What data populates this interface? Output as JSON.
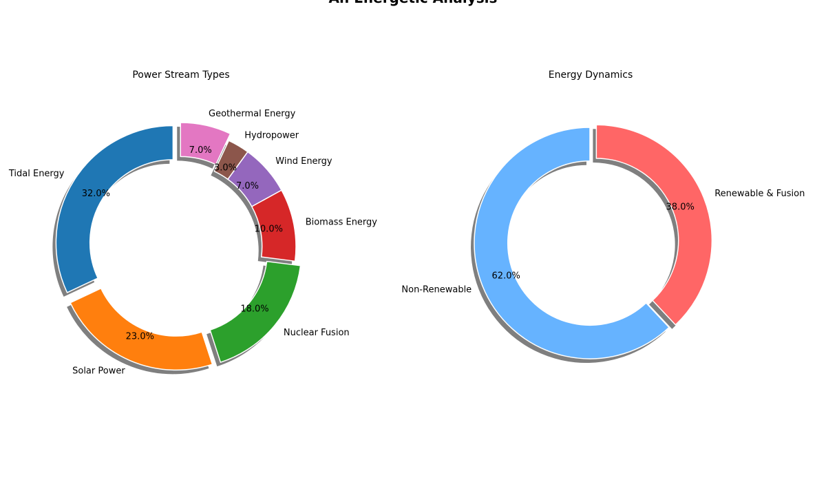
{
  "figure_title": "An Energetic Analysis",
  "chart_data": [
    {
      "type": "pie",
      "style": "donut",
      "title": "Power Stream Types",
      "start_angle_deg": 90,
      "direction": "counterclockwise",
      "shadow": true,
      "slices": [
        {
          "label": "Tidal Energy",
          "value": 32,
          "pct_label": "32.0%",
          "color": "#1f77b4",
          "exploded": true
        },
        {
          "label": "Solar Power",
          "value": 23,
          "pct_label": "23.0%",
          "color": "#ff7f0e",
          "exploded": true
        },
        {
          "label": "Nuclear Fusion",
          "value": 18,
          "pct_label": "18.0%",
          "color": "#2ca02c",
          "exploded": true
        },
        {
          "label": "Biomass Energy",
          "value": 10,
          "pct_label": "10.0%",
          "color": "#d62728",
          "exploded": false
        },
        {
          "label": "Wind Energy",
          "value": 7,
          "pct_label": "7.0%",
          "color": "#9467bd",
          "exploded": false
        },
        {
          "label": "Hydropower",
          "value": 3,
          "pct_label": "3.0%",
          "color": "#8c564b",
          "exploded": false
        },
        {
          "label": "Geothermal Energy",
          "value": 7,
          "pct_label": "7.0%",
          "color": "#e377c2",
          "exploded": true
        }
      ]
    },
    {
      "type": "pie",
      "style": "donut",
      "title": "Energy Dynamics",
      "start_angle_deg": 90,
      "direction": "counterclockwise",
      "shadow": true,
      "slices": [
        {
          "label": "Non-Renewable",
          "value": 62,
          "pct_label": "62.0%",
          "color": "#66b3ff",
          "exploded": false
        },
        {
          "label": "Renewable & Fusion",
          "value": 38,
          "pct_label": "38.0%",
          "color": "#ff6666",
          "exploded": true
        }
      ]
    }
  ]
}
